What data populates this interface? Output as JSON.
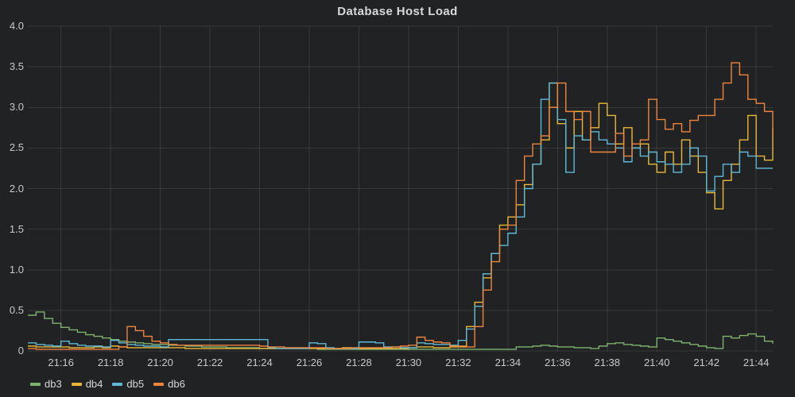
{
  "chart": {
    "title": "Database Host Load",
    "background": "#212224",
    "grid_color": "rgba(255,255,255,0.10)",
    "text_color": "#c8c9ca",
    "y_ticks": [
      {
        "label": "4.0",
        "value": 4.0
      },
      {
        "label": "3.5",
        "value": 3.5
      },
      {
        "label": "3.0",
        "value": 3.0
      },
      {
        "label": "2.5",
        "value": 2.5
      },
      {
        "label": "2.0",
        "value": 2.0
      },
      {
        "label": "1.5",
        "value": 1.5
      },
      {
        "label": "1.0",
        "value": 1.0
      },
      {
        "label": "0.5",
        "value": 0.5
      },
      {
        "label": "0",
        "value": 0.0
      }
    ],
    "x_ticks": [
      {
        "label": "21:16",
        "index": 4
      },
      {
        "label": "21:18",
        "index": 10
      },
      {
        "label": "21:20",
        "index": 16
      },
      {
        "label": "21:22",
        "index": 22
      },
      {
        "label": "21:24",
        "index": 28
      },
      {
        "label": "21:26",
        "index": 34
      },
      {
        "label": "21:28",
        "index": 40
      },
      {
        "label": "21:30",
        "index": 46
      },
      {
        "label": "21:32",
        "index": 52
      },
      {
        "label": "21:34",
        "index": 58
      },
      {
        "label": "21:36",
        "index": 64
      },
      {
        "label": "21:38",
        "index": 70
      },
      {
        "label": "21:40",
        "index": 76
      },
      {
        "label": "21:42",
        "index": 82
      },
      {
        "label": "21:44",
        "index": 88
      }
    ]
  },
  "legend": {
    "items": [
      {
        "label": "db3",
        "color": "#7EB26D"
      },
      {
        "label": "db4",
        "color": "#EAB839"
      },
      {
        "label": "db5",
        "color": "#5FB9D6"
      },
      {
        "label": "db6",
        "color": "#EF843C"
      }
    ]
  },
  "chart_data": {
    "type": "line",
    "step": true,
    "title": "Database Host Load",
    "xlabel": "",
    "ylabel": "",
    "ylim": [
      0,
      4.0
    ],
    "grid": true,
    "legend_position": "bottom-left",
    "x_start": "21:14:40",
    "x_end": "21:44:40",
    "x_interval_seconds": 20,
    "x_tick_labels": [
      "21:16",
      "21:18",
      "21:20",
      "21:22",
      "21:24",
      "21:26",
      "21:28",
      "21:30",
      "21:32",
      "21:34",
      "21:36",
      "21:38",
      "21:40",
      "21:42",
      "21:44"
    ],
    "series": [
      {
        "name": "db3",
        "color": "#7EB26D",
        "values": [
          0.44,
          0.48,
          0.4,
          0.34,
          0.29,
          0.26,
          0.23,
          0.2,
          0.18,
          0.16,
          0.14,
          0.12,
          0.11,
          0.1,
          0.09,
          0.08,
          0.08,
          0.07,
          0.07,
          0.06,
          0.06,
          0.05,
          0.05,
          0.05,
          0.04,
          0.04,
          0.04,
          0.04,
          0.03,
          0.03,
          0.03,
          0.03,
          0.03,
          0.03,
          0.03,
          0.02,
          0.02,
          0.02,
          0.02,
          0.02,
          0.02,
          0.02,
          0.02,
          0.02,
          0.02,
          0.02,
          0.02,
          0.02,
          0.02,
          0.02,
          0.02,
          0.02,
          0.02,
          0.02,
          0.02,
          0.02,
          0.02,
          0.02,
          0.02,
          0.05,
          0.05,
          0.06,
          0.07,
          0.06,
          0.05,
          0.05,
          0.04,
          0.04,
          0.03,
          0.06,
          0.09,
          0.1,
          0.08,
          0.07,
          0.06,
          0.05,
          0.16,
          0.14,
          0.12,
          0.1,
          0.08,
          0.06,
          0.04,
          0.03,
          0.18,
          0.16,
          0.19,
          0.21,
          0.18,
          0.12,
          0.09
        ]
      },
      {
        "name": "db4",
        "color": "#EAB839",
        "values": [
          0.06,
          0.05,
          0.05,
          0.05,
          0.05,
          0.04,
          0.04,
          0.04,
          0.05,
          0.04,
          0.06,
          0.05,
          0.04,
          0.04,
          0.04,
          0.04,
          0.04,
          0.04,
          0.04,
          0.03,
          0.03,
          0.03,
          0.03,
          0.03,
          0.03,
          0.03,
          0.03,
          0.03,
          0.03,
          0.03,
          0.03,
          0.03,
          0.03,
          0.03,
          0.03,
          0.03,
          0.03,
          0.03,
          0.04,
          0.03,
          0.03,
          0.03,
          0.03,
          0.03,
          0.03,
          0.03,
          0.04,
          0.05,
          0.05,
          0.04,
          0.04,
          0.05,
          0.05,
          0.3,
          0.6,
          0.9,
          1.2,
          1.55,
          1.65,
          1.8,
          2.05,
          2.3,
          2.6,
          3.3,
          2.8,
          2.5,
          2.95,
          2.6,
          2.75,
          3.05,
          2.9,
          2.55,
          2.75,
          2.5,
          2.55,
          2.3,
          2.2,
          2.45,
          2.3,
          2.6,
          2.4,
          2.2,
          1.95,
          1.75,
          2.1,
          2.3,
          2.6,
          2.9,
          2.4,
          2.35,
          2.75
        ]
      },
      {
        "name": "db5",
        "color": "#5FB9D6",
        "values": [
          0.1,
          0.08,
          0.07,
          0.06,
          0.12,
          0.09,
          0.07,
          0.06,
          0.06,
          0.05,
          0.13,
          0.1,
          0.08,
          0.07,
          0.06,
          0.06,
          0.05,
          0.14,
          0.14,
          0.14,
          0.14,
          0.14,
          0.14,
          0.14,
          0.14,
          0.14,
          0.14,
          0.14,
          0.14,
          0.04,
          0.03,
          0.03,
          0.03,
          0.03,
          0.1,
          0.09,
          0.04,
          0.03,
          0.03,
          0.03,
          0.11,
          0.11,
          0.1,
          0.05,
          0.05,
          0.04,
          0.04,
          0.1,
          0.09,
          0.08,
          0.08,
          0.07,
          0.13,
          0.27,
          0.55,
          0.95,
          1.2,
          1.3,
          1.45,
          1.65,
          2.0,
          2.3,
          3.1,
          3.3,
          2.85,
          2.2,
          2.65,
          2.6,
          2.7,
          2.6,
          2.55,
          2.5,
          2.33,
          2.5,
          2.4,
          2.45,
          2.33,
          2.3,
          2.2,
          2.3,
          2.5,
          2.4,
          1.97,
          2.15,
          2.3,
          2.2,
          2.45,
          2.4,
          2.25,
          2.25,
          2.25
        ]
      },
      {
        "name": "db6",
        "color": "#EF843C",
        "values": [
          0.03,
          0.02,
          0.02,
          0.02,
          0.02,
          0.02,
          0.02,
          0.02,
          0.02,
          0.02,
          0.02,
          0.05,
          0.3,
          0.25,
          0.18,
          0.12,
          0.1,
          0.08,
          0.07,
          0.07,
          0.07,
          0.07,
          0.07,
          0.07,
          0.07,
          0.07,
          0.07,
          0.07,
          0.06,
          0.05,
          0.05,
          0.04,
          0.04,
          0.04,
          0.04,
          0.04,
          0.03,
          0.03,
          0.03,
          0.04,
          0.04,
          0.04,
          0.04,
          0.04,
          0.05,
          0.06,
          0.07,
          0.17,
          0.13,
          0.11,
          0.1,
          0.06,
          0.06,
          0.05,
          0.3,
          0.75,
          1.1,
          1.5,
          1.55,
          2.1,
          2.4,
          2.55,
          2.65,
          3.0,
          3.3,
          2.95,
          2.85,
          2.95,
          2.45,
          2.45,
          2.45,
          2.68,
          2.4,
          2.55,
          2.6,
          3.1,
          2.85,
          2.73,
          2.8,
          2.7,
          2.84,
          2.9,
          2.9,
          3.1,
          3.3,
          3.55,
          3.4,
          3.1,
          3.05,
          2.95,
          2.65
        ]
      }
    ]
  }
}
